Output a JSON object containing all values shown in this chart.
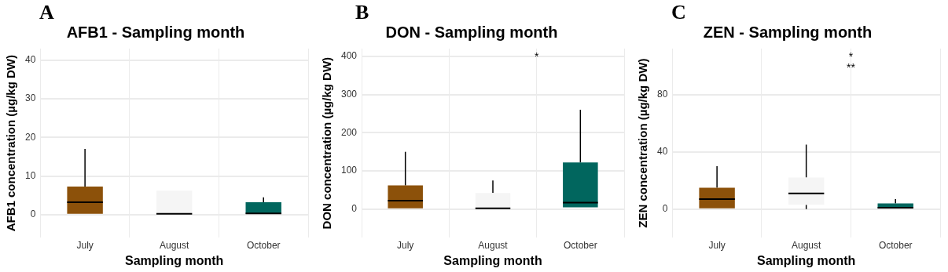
{
  "chart_data": [
    {
      "type": "box",
      "title": "AFB1 - Sampling month",
      "xlabel": "Sampling month",
      "ylabel": "AFB1 concentration (µg/kg DW)",
      "categories": [
        "July",
        "August",
        "October"
      ],
      "colors": [
        "#8c510a",
        "#f5f5f5",
        "#01665e"
      ],
      "ylim": [
        -6,
        43
      ],
      "yticks": [
        0,
        10,
        20,
        30,
        40
      ],
      "grid": true,
      "boxes": [
        {
          "low": 0,
          "q1": 0,
          "median": 3.2,
          "q3": 7.3,
          "high": 17
        },
        {
          "low": 0,
          "q1": 0,
          "median": 0.2,
          "q3": 6.2,
          "high": 6.2
        },
        {
          "low": 0,
          "q1": 0,
          "median": 0.3,
          "q3": 3.2,
          "high": 4.5
        }
      ],
      "annotations": [
        "A"
      ]
    },
    {
      "type": "box",
      "title": "DON - Sampling month",
      "xlabel": "Sampling month",
      "ylabel": "DON concentration (µg/kg DW)",
      "categories": [
        "July",
        "August",
        "October"
      ],
      "colors": [
        "#8c510a",
        "#f5f5f5",
        "#01665e"
      ],
      "ylim": [
        -75,
        420
      ],
      "yticks": [
        0,
        100,
        200,
        300,
        400
      ],
      "grid": true,
      "boxes": [
        {
          "low": 0,
          "q1": 0,
          "median": 22,
          "q3": 62,
          "high": 150
        },
        {
          "low": 0,
          "q1": 0,
          "median": 2,
          "q3": 42,
          "high": 75
        },
        {
          "low": 5,
          "q1": 5,
          "median": 17,
          "q3": 122,
          "high": 260
        }
      ],
      "annotations": [
        "B",
        "*"
      ]
    },
    {
      "type": "box",
      "title": "ZEN - Sampling month",
      "xlabel": "Sampling month",
      "ylabel": "ZEN concentration (µg/kg DW)",
      "categories": [
        "July",
        "August",
        "October"
      ],
      "colors": [
        "#8c510a",
        "#f5f5f5",
        "#01665e"
      ],
      "ylim": [
        -20,
        112
      ],
      "yticks": [
        0,
        40,
        80
      ],
      "grid": true,
      "boxes": [
        {
          "low": 0,
          "q1": 0,
          "median": 7,
          "q3": 15,
          "high": 30
        },
        {
          "low": 0,
          "q1": 3,
          "median": 11,
          "q3": 22,
          "high": 45
        },
        {
          "low": 0,
          "q1": 0,
          "median": 1,
          "q3": 4,
          "high": 7
        }
      ],
      "annotations": [
        "C",
        "*",
        "**"
      ]
    }
  ]
}
